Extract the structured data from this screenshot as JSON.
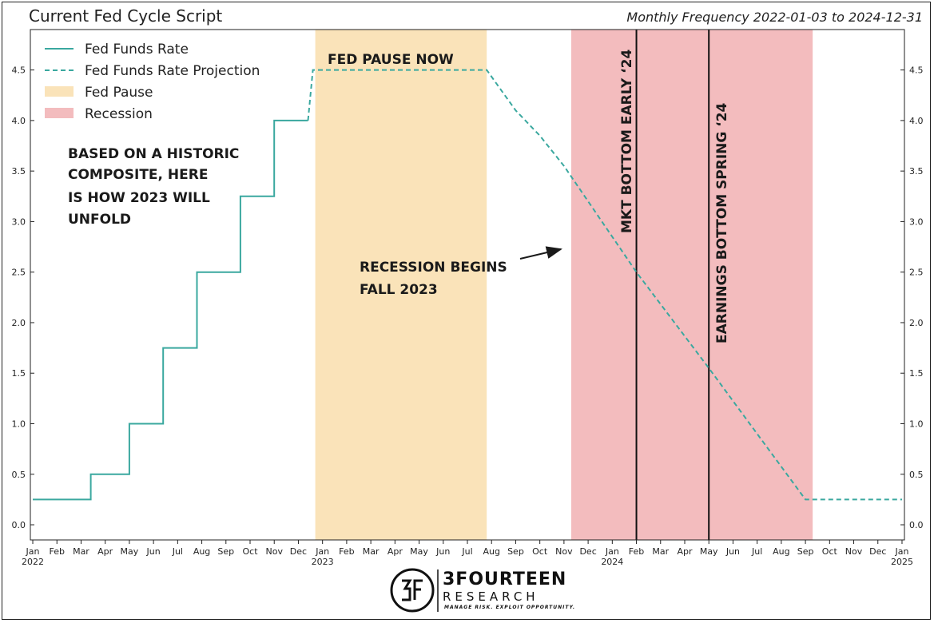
{
  "title": "Current Fed Cycle Script",
  "subtitle": "Monthly Frequency 2022-01-03 to 2024-12-31",
  "colors": {
    "rate": "#3aa89f",
    "pause": "#fae3b9",
    "recession": "#f3bcbe",
    "vline": "#111111",
    "arrow": "#1a1a1a"
  },
  "chart_data": {
    "type": "line",
    "x_unit": "month index from Jan 2022",
    "xlim": [
      -0.1,
      36.1
    ],
    "ylim": [
      -0.15,
      4.9
    ],
    "y_ticks": [
      0.0,
      0.5,
      1.0,
      1.5,
      2.0,
      2.5,
      3.0,
      3.5,
      4.0,
      4.5
    ],
    "y_tick_labels": [
      "0.0",
      "0.5",
      "1.0",
      "1.5",
      "2.0",
      "2.5",
      "3.0",
      "3.5",
      "4.0",
      "4.5"
    ],
    "x_ticks": [
      {
        "month": "Jan",
        "year": "2022"
      },
      {
        "month": "Feb"
      },
      {
        "month": "Mar"
      },
      {
        "month": "Apr"
      },
      {
        "month": "May"
      },
      {
        "month": "Jun"
      },
      {
        "month": "Jul"
      },
      {
        "month": "Aug"
      },
      {
        "month": "Sep"
      },
      {
        "month": "Oct"
      },
      {
        "month": "Nov"
      },
      {
        "month": "Dec"
      },
      {
        "month": "Jan",
        "year": "2023"
      },
      {
        "month": "Feb"
      },
      {
        "month": "Mar"
      },
      {
        "month": "Apr"
      },
      {
        "month": "May"
      },
      {
        "month": "Jun"
      },
      {
        "month": "Jul"
      },
      {
        "month": "Aug"
      },
      {
        "month": "Sep"
      },
      {
        "month": "Oct"
      },
      {
        "month": "Nov"
      },
      {
        "month": "Dec"
      },
      {
        "month": "Jan",
        "year": "2024"
      },
      {
        "month": "Feb"
      },
      {
        "month": "Mar"
      },
      {
        "month": "Apr"
      },
      {
        "month": "May"
      },
      {
        "month": "Jun"
      },
      {
        "month": "Jul"
      },
      {
        "month": "Aug"
      },
      {
        "month": "Sep"
      },
      {
        "month": "Oct"
      },
      {
        "month": "Nov"
      },
      {
        "month": "Dec"
      },
      {
        "month": "Jan",
        "year": "2025"
      }
    ],
    "series": [
      {
        "name": "Fed Funds Rate",
        "style": "solid",
        "points": [
          [
            0.0,
            0.25
          ],
          [
            2.4,
            0.25
          ],
          [
            2.4,
            0.5
          ],
          [
            4.0,
            0.5
          ],
          [
            4.0,
            1.0
          ],
          [
            5.4,
            1.0
          ],
          [
            5.4,
            1.75
          ],
          [
            6.8,
            1.75
          ],
          [
            6.8,
            2.5
          ],
          [
            8.6,
            2.5
          ],
          [
            8.6,
            3.25
          ],
          [
            10.0,
            3.25
          ],
          [
            10.0,
            4.0
          ],
          [
            11.4,
            4.0
          ]
        ]
      },
      {
        "name": "Fed Funds Rate Projection",
        "style": "dashed",
        "points": [
          [
            11.4,
            4.0
          ],
          [
            11.6,
            4.5
          ],
          [
            18.8,
            4.5
          ],
          [
            20.0,
            4.1
          ],
          [
            21.0,
            3.85
          ],
          [
            22.0,
            3.55
          ],
          [
            25.0,
            2.5
          ],
          [
            28.0,
            1.55
          ],
          [
            32.0,
            0.25
          ],
          [
            36.0,
            0.25
          ]
        ]
      }
    ],
    "bands": [
      {
        "name": "Fed Pause",
        "x_start": 11.7,
        "x_end": 18.8
      },
      {
        "name": "Recession",
        "x_start": 22.3,
        "x_end": 32.3
      }
    ],
    "vlines": [
      25.0,
      28.0
    ],
    "legend": {
      "location": "top-left",
      "entries": [
        "Fed Funds Rate",
        "Fed Funds Rate Projection",
        "Fed Pause",
        "Recession"
      ]
    },
    "annotations": {
      "fed_pause_now": "FED PAUSE NOW",
      "historic_lines": [
        "BASED ON A HISTORIC",
        "COMPOSITE, HERE",
        "IS HOW 2023 WILL",
        "UNFOLD"
      ],
      "recession_lines": [
        "RECESSION BEGINS",
        "FALL 2023"
      ],
      "mkt_bottom": "MKT BOTTOM EARLY ‘24",
      "earnings_bottom": "EARNINGS BOTTOM SPRING ‘24"
    }
  },
  "logo": {
    "name_line": "3FOURTEEN",
    "sub_line": "RESEARCH",
    "tagline": "MANAGE RISK. EXPLOIT OPPORTUNITY."
  }
}
